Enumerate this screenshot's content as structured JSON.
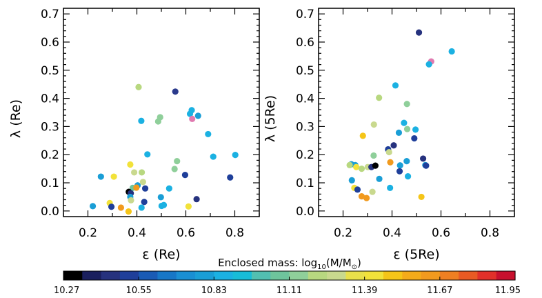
{
  "chart_data": [
    {
      "type": "scatter",
      "xlabel": "ε  (Re)",
      "ylabel": "λ  (Re)",
      "xlim": [
        0.1,
        0.9
      ],
      "ylim": [
        -0.02,
        0.72
      ],
      "xticks": [
        "0.2",
        "0.4",
        "0.6",
        "0.8"
      ],
      "yticks": [
        "0.0",
        "0.1",
        "0.2",
        "0.3",
        "0.4",
        "0.5",
        "0.6",
        "0.7"
      ],
      "points": [
        {
          "x": 0.407,
          "y": 0.44,
          "c": "#b8d880"
        },
        {
          "x": 0.557,
          "y": 0.424,
          "c": "#2a3a8c"
        },
        {
          "x": 0.624,
          "y": 0.358,
          "c": "#1bb1e2"
        },
        {
          "x": 0.617,
          "y": 0.345,
          "c": "#1bb1e2"
        },
        {
          "x": 0.65,
          "y": 0.338,
          "c": "#1a9ed6"
        },
        {
          "x": 0.495,
          "y": 0.333,
          "c": "#8fcf9a"
        },
        {
          "x": 0.487,
          "y": 0.318,
          "c": "#8fcf9a"
        },
        {
          "x": 0.418,
          "y": 0.32,
          "c": "#1bb1e2"
        },
        {
          "x": 0.626,
          "y": 0.327,
          "c": "#e07ab0"
        },
        {
          "x": 0.691,
          "y": 0.273,
          "c": "#1bb1e2"
        },
        {
          "x": 0.443,
          "y": 0.201,
          "c": "#1bb1e2"
        },
        {
          "x": 0.712,
          "y": 0.193,
          "c": "#1bb1e2"
        },
        {
          "x": 0.802,
          "y": 0.199,
          "c": "#1bb1e2"
        },
        {
          "x": 0.564,
          "y": 0.177,
          "c": "#8fcf9a"
        },
        {
          "x": 0.554,
          "y": 0.149,
          "c": "#8fcf9a"
        },
        {
          "x": 0.373,
          "y": 0.165,
          "c": "#f2e23a"
        },
        {
          "x": 0.389,
          "y": 0.137,
          "c": "#c9d98e"
        },
        {
          "x": 0.42,
          "y": 0.137,
          "c": "#b8d880"
        },
        {
          "x": 0.425,
          "y": 0.103,
          "c": "#c9d98e"
        },
        {
          "x": 0.253,
          "y": 0.122,
          "c": "#1a9ed6"
        },
        {
          "x": 0.306,
          "y": 0.122,
          "c": "#f2e23a"
        },
        {
          "x": 0.597,
          "y": 0.128,
          "c": "#1f3f9a"
        },
        {
          "x": 0.781,
          "y": 0.119,
          "c": "#1f3f9a"
        },
        {
          "x": 0.403,
          "y": 0.091,
          "c": "#1a9ed6"
        },
        {
          "x": 0.383,
          "y": 0.082,
          "c": "#6ec49c"
        },
        {
          "x": 0.434,
          "y": 0.08,
          "c": "#1f3f9a"
        },
        {
          "x": 0.398,
          "y": 0.083,
          "c": "#f19a1e"
        },
        {
          "x": 0.532,
          "y": 0.08,
          "c": "#1bb1e2"
        },
        {
          "x": 0.367,
          "y": 0.068,
          "c": "#000000"
        },
        {
          "x": 0.375,
          "y": 0.063,
          "c": "#26327e"
        },
        {
          "x": 0.373,
          "y": 0.05,
          "c": "#1a9ed6"
        },
        {
          "x": 0.376,
          "y": 0.038,
          "c": "#c9d98e"
        },
        {
          "x": 0.498,
          "y": 0.049,
          "c": "#1a9ed6"
        },
        {
          "x": 0.644,
          "y": 0.042,
          "c": "#26327e"
        },
        {
          "x": 0.43,
          "y": 0.032,
          "c": "#1f3f9a"
        },
        {
          "x": 0.22,
          "y": 0.017,
          "c": "#1a9ed6"
        },
        {
          "x": 0.289,
          "y": 0.028,
          "c": "#f2e23a"
        },
        {
          "x": 0.296,
          "y": 0.015,
          "c": "#1f3f9a"
        },
        {
          "x": 0.335,
          "y": 0.012,
          "c": "#f19a1e"
        },
        {
          "x": 0.419,
          "y": 0.012,
          "c": "#1bb1e2"
        },
        {
          "x": 0.501,
          "y": 0.018,
          "c": "#1bb1e2"
        },
        {
          "x": 0.51,
          "y": 0.021,
          "c": "#1bb1e2"
        },
        {
          "x": 0.611,
          "y": 0.016,
          "c": "#f2e23a"
        },
        {
          "x": 0.366,
          "y": -0.002,
          "c": "#f5c518"
        }
      ]
    },
    {
      "type": "scatter",
      "xlabel": "ε  (5Re)",
      "ylabel": "λ  (5Re)",
      "xlim": [
        0.1,
        0.9
      ],
      "ylim": [
        -0.02,
        0.72
      ],
      "xticks": [
        "0.2",
        "0.4",
        "0.6",
        "0.8"
      ],
      "yticks": [
        "0.0",
        "0.1",
        "0.2",
        "0.3",
        "0.4",
        "0.5",
        "0.6",
        "0.7"
      ],
      "points": [
        {
          "x": 0.51,
          "y": 0.634,
          "c": "#26327e"
        },
        {
          "x": 0.644,
          "y": 0.567,
          "c": "#1bb1e2"
        },
        {
          "x": 0.56,
          "y": 0.531,
          "c": "#e07ab0"
        },
        {
          "x": 0.551,
          "y": 0.521,
          "c": "#1bb1e2"
        },
        {
          "x": 0.414,
          "y": 0.446,
          "c": "#1bb1e2"
        },
        {
          "x": 0.347,
          "y": 0.402,
          "c": "#b8d880"
        },
        {
          "x": 0.461,
          "y": 0.38,
          "c": "#8fcf9a"
        },
        {
          "x": 0.449,
          "y": 0.313,
          "c": "#1bb1e2"
        },
        {
          "x": 0.326,
          "y": 0.307,
          "c": "#c9d98e"
        },
        {
          "x": 0.462,
          "y": 0.291,
          "c": "#8fcf9a"
        },
        {
          "x": 0.496,
          "y": 0.289,
          "c": "#1bb1e2"
        },
        {
          "x": 0.428,
          "y": 0.278,
          "c": "#1a9ed6"
        },
        {
          "x": 0.281,
          "y": 0.267,
          "c": "#f5c518"
        },
        {
          "x": 0.491,
          "y": 0.258,
          "c": "#1f3f9a"
        },
        {
          "x": 0.407,
          "y": 0.233,
          "c": "#26327e"
        },
        {
          "x": 0.384,
          "y": 0.219,
          "c": "#1f3f9a"
        },
        {
          "x": 0.388,
          "y": 0.209,
          "c": "#c9d98e"
        },
        {
          "x": 0.325,
          "y": 0.197,
          "c": "#8fcf9a"
        },
        {
          "x": 0.46,
          "y": 0.177,
          "c": "#1a9ed6"
        },
        {
          "x": 0.527,
          "y": 0.186,
          "c": "#26327e"
        },
        {
          "x": 0.234,
          "y": 0.166,
          "c": "#1a9ed6"
        },
        {
          "x": 0.25,
          "y": 0.163,
          "c": "#1a9ed6"
        },
        {
          "x": 0.227,
          "y": 0.163,
          "c": "#b8d880"
        },
        {
          "x": 0.254,
          "y": 0.156,
          "c": "#f2e23a"
        },
        {
          "x": 0.301,
          "y": 0.156,
          "c": "#c9d98e"
        },
        {
          "x": 0.316,
          "y": 0.156,
          "c": "#26327e"
        },
        {
          "x": 0.332,
          "y": 0.161,
          "c": "#000000"
        },
        {
          "x": 0.393,
          "y": 0.173,
          "c": "#f19a1e"
        },
        {
          "x": 0.433,
          "y": 0.162,
          "c": "#1a9ed6"
        },
        {
          "x": 0.431,
          "y": 0.141,
          "c": "#1f3f9a"
        },
        {
          "x": 0.536,
          "y": 0.163,
          "c": "#1a9ed6"
        },
        {
          "x": 0.539,
          "y": 0.161,
          "c": "#1f3f9a"
        },
        {
          "x": 0.276,
          "y": 0.15,
          "c": "#b8d880"
        },
        {
          "x": 0.465,
          "y": 0.123,
          "c": "#1bb1e2"
        },
        {
          "x": 0.236,
          "y": 0.109,
          "c": "#1a9ed6"
        },
        {
          "x": 0.348,
          "y": 0.114,
          "c": "#1a9ed6"
        },
        {
          "x": 0.246,
          "y": 0.082,
          "c": "#f2e23a"
        },
        {
          "x": 0.259,
          "y": 0.076,
          "c": "#1f3f9a"
        },
        {
          "x": 0.392,
          "y": 0.082,
          "c": "#1bb1e2"
        },
        {
          "x": 0.32,
          "y": 0.068,
          "c": "#c9d98e"
        },
        {
          "x": 0.276,
          "y": 0.052,
          "c": "#f19a1e"
        },
        {
          "x": 0.296,
          "y": 0.046,
          "c": "#f19a1e"
        },
        {
          "x": 0.52,
          "y": 0.05,
          "c": "#f5c518"
        }
      ]
    }
  ],
  "colorbar": {
    "title_prefix": "Enclosed mass:  log",
    "title_sub": "10",
    "title_mid": "(M/M",
    "title_sun": "⊙",
    "title_suffix": ")",
    "ticks": [
      "10.27",
      "10.55",
      "10.83",
      "11.11",
      "11.39",
      "11.67",
      "11.95"
    ],
    "colors": [
      "#000000",
      "#1a1f5e",
      "#26327e",
      "#1f3f9a",
      "#1a5bb5",
      "#1777c7",
      "#1a8fd3",
      "#1a9ed6",
      "#1bb1e2",
      "#17bcd8",
      "#52bfb1",
      "#6ec49c",
      "#8fcf9a",
      "#b8d880",
      "#c9d98e",
      "#e9e04a",
      "#f2e23a",
      "#f5c518",
      "#f4ab1a",
      "#f19a1e",
      "#ee7f22",
      "#e95a24",
      "#e2302a",
      "#c8102e"
    ]
  }
}
